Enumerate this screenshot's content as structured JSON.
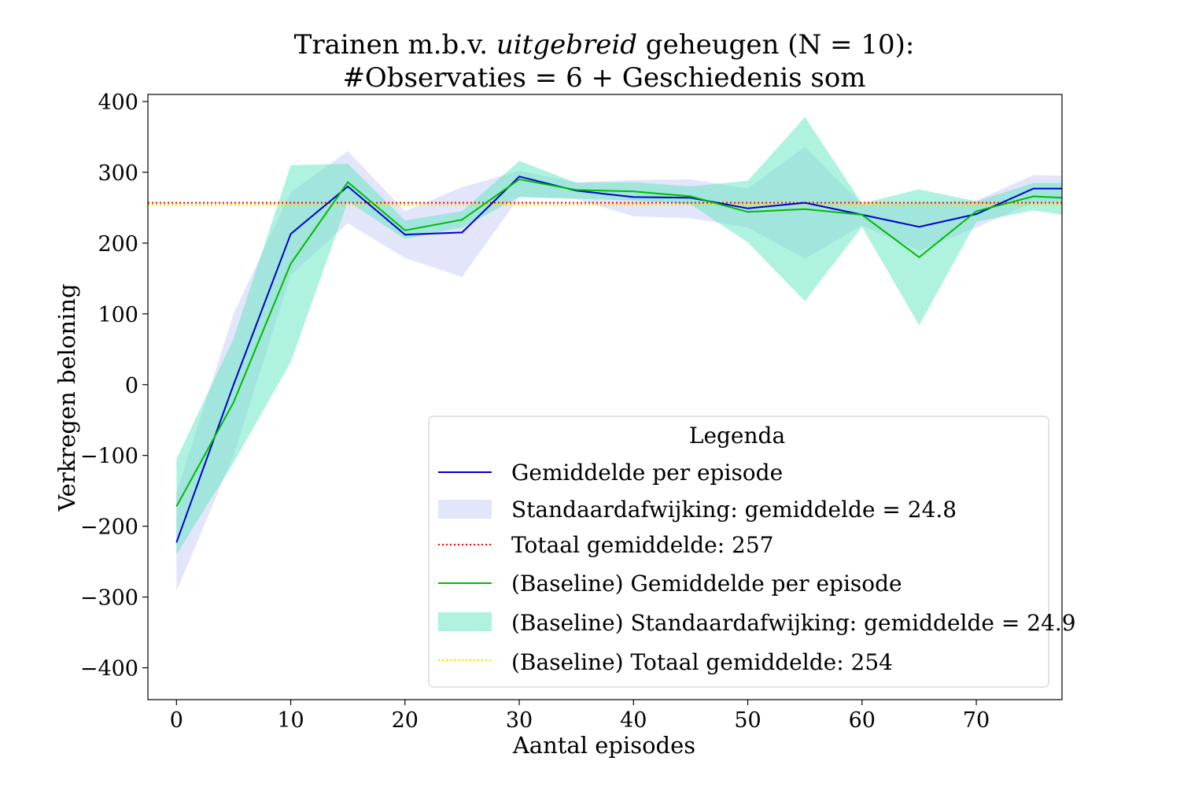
{
  "chart_data": {
    "type": "line",
    "title_line1_pre": "Trainen m.b.v. ",
    "title_line1_italic": "uitgebreid",
    "title_line1_post": " geheugen (N = 10):",
    "title_line2": "#Observaties = 6 + Geschiedenis som",
    "xlabel": "Aantal episodes",
    "ylabel": "Verkregen beloning",
    "xlim": [
      -2.5,
      77.5
    ],
    "ylim": [
      -445,
      410
    ],
    "xticks": [
      0,
      10,
      20,
      30,
      40,
      50,
      60,
      70
    ],
    "xtick_labels": [
      "0",
      "10",
      "20",
      "30",
      "40",
      "50",
      "60",
      "70"
    ],
    "yticks": [
      400,
      300,
      200,
      100,
      0,
      -100,
      -200,
      -300,
      -400
    ],
    "ytick_labels": [
      "400",
      "300",
      "200",
      "100",
      "0",
      "−100",
      "−200",
      "−300",
      "−400"
    ],
    "grid": false,
    "legend_placement": "lower-right",
    "legend_title": "Legenda",
    "x": [
      0,
      5,
      10,
      15,
      20,
      25,
      30,
      35,
      40,
      45,
      50,
      55,
      60,
      65,
      70,
      75,
      77.5
    ],
    "series": [
      {
        "name": "Gemiddelde per episode",
        "kind": "line",
        "color": "#0000cc",
        "values": [
          -223,
          0,
          213,
          280,
          212,
          215,
          294,
          274,
          265,
          264,
          249,
          257,
          240,
          223,
          241,
          277,
          277
        ]
      },
      {
        "name": "Standaardafwijking: gemiddelde = 24.8",
        "kind": "band",
        "color": "#c8ccf5",
        "lower": [
          -292,
          -100,
          155,
          228,
          179,
          152,
          265,
          262,
          238,
          235,
          222,
          178,
          225,
          189,
          222,
          258,
          258
        ],
        "upper": [
          -153,
          100,
          272,
          330,
          245,
          279,
          302,
          286,
          289,
          290,
          277,
          336,
          255,
          257,
          260,
          296,
          295
        ]
      },
      {
        "name": "Totaal gemiddelde: 257",
        "kind": "hline",
        "color": "#ff0000",
        "value": 257
      },
      {
        "name": "(Baseline) Gemiddelde per episode",
        "kind": "line",
        "color": "#00bb00",
        "values": [
          -172,
          -25,
          171,
          286,
          218,
          233,
          290,
          275,
          273,
          266,
          244,
          248,
          240,
          180,
          245,
          266,
          264
        ]
      },
      {
        "name": "(Baseline) Standaardafwijking: gemiddelde = 24.9",
        "kind": "band",
        "color": "#5fe6c0",
        "lower": [
          -240,
          -110,
          32,
          259,
          206,
          222,
          265,
          263,
          260,
          255,
          201,
          118,
          223,
          84,
          230,
          246,
          240
        ],
        "upper": [
          -105,
          65,
          310,
          312,
          232,
          245,
          316,
          285,
          286,
          280,
          288,
          378,
          256,
          276,
          259,
          285,
          285
        ]
      },
      {
        "name": "(Baseline) Totaal gemiddelde: 254",
        "kind": "hline",
        "color": "#ffd700",
        "value": 254
      }
    ]
  }
}
